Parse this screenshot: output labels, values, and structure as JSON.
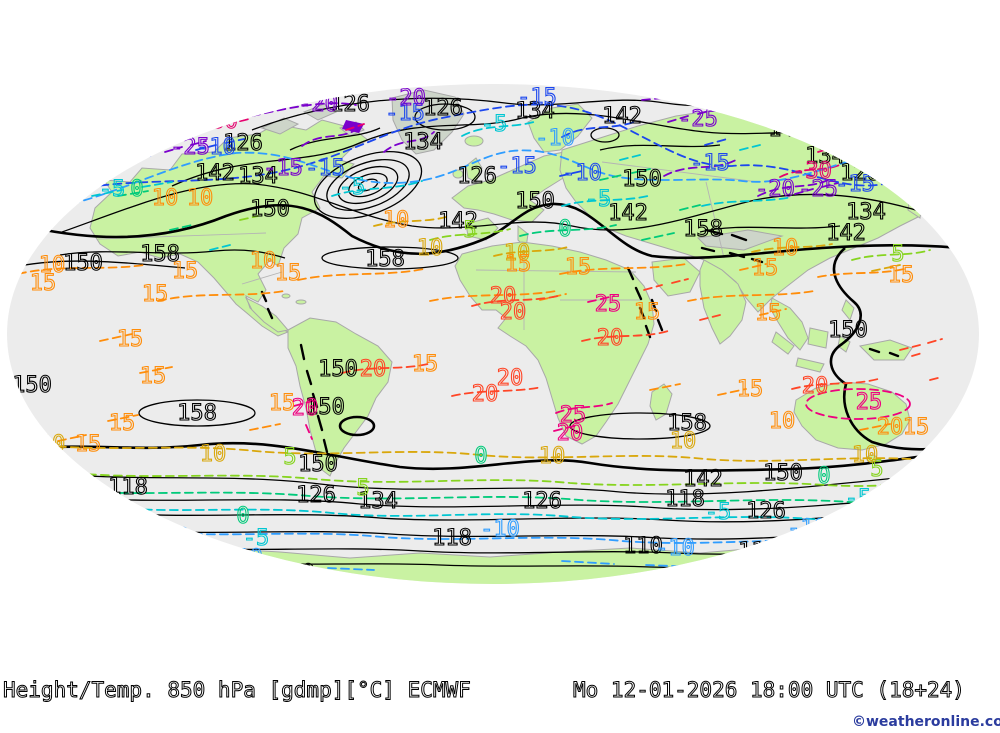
{
  "footer": {
    "left": "Height/Temp. 850 hPa [gdmp][°C] ECMWF",
    "right": "Mo 12-01-2026 18:00 UTC (18+24)",
    "copyright": "©weatheronline.co.uk"
  },
  "map": {
    "description": "Elliptical world map, ECMWF 850 hPa geopotential height (black, gdmp) and temperature (colored dashed, °C)",
    "ocean_color": "#ececec",
    "land_color": "#c9f2a2",
    "coast_color": "#a8a8a8",
    "height_levels": [
      110,
      118,
      126,
      134,
      142,
      150,
      158
    ],
    "temp_levels": [
      -30,
      -25,
      -20,
      -15,
      -10,
      -5,
      0,
      5,
      10,
      15,
      20,
      25
    ],
    "temp_colors": {
      "-30": "#e6006e",
      "-25": "#7a00cc",
      "-20": "#7a00cc",
      "-15": "#1c47ee",
      "-10": "#2f9dff",
      "-5": "#00c6d2",
      "0": "#00ca7a",
      "5": "#86d41f",
      "10": "#d9a70b",
      "15": "#ff8d0a",
      "20": "#ff4526",
      "25": "#ee0080"
    },
    "labels": [
      [
        "126",
        243,
        142,
        "k"
      ],
      [
        "126",
        350,
        103,
        "k"
      ],
      [
        "126",
        443,
        107,
        "k"
      ],
      [
        "126",
        477,
        175,
        "k"
      ],
      [
        "126",
        860,
        172,
        "k"
      ],
      [
        "126",
        316,
        494,
        "k"
      ],
      [
        "126",
        542,
        500,
        "k"
      ],
      [
        "126",
        766,
        510,
        "k"
      ],
      [
        "134",
        258,
        175,
        "k"
      ],
      [
        "134",
        423,
        141,
        "k"
      ],
      [
        "134",
        535,
        110,
        "k"
      ],
      [
        "134",
        825,
        155,
        "k"
      ],
      [
        "134",
        866,
        211,
        "k"
      ],
      [
        "134",
        378,
        500,
        "k"
      ],
      [
        "142",
        215,
        172,
        "k"
      ],
      [
        "142",
        622,
        115,
        "k"
      ],
      [
        "142",
        458,
        220,
        "k"
      ],
      [
        "142",
        628,
        212,
        "k"
      ],
      [
        "142",
        788,
        128,
        "k"
      ],
      [
        "142",
        846,
        232,
        "k"
      ],
      [
        "142",
        703,
        478,
        "k"
      ],
      [
        "150",
        270,
        208,
        "k"
      ],
      [
        "150",
        83,
        262,
        "k"
      ],
      [
        "150",
        32,
        384,
        "k"
      ],
      [
        "150",
        338,
        368,
        "k"
      ],
      [
        "150",
        325,
        406,
        "k"
      ],
      [
        "150",
        535,
        200,
        "k"
      ],
      [
        "150",
        642,
        178,
        "k"
      ],
      [
        "150",
        848,
        329,
        "k"
      ],
      [
        "150",
        318,
        463,
        "k"
      ],
      [
        "150",
        783,
        472,
        "k"
      ],
      [
        "158",
        160,
        253,
        "k"
      ],
      [
        "158",
        385,
        258,
        "k"
      ],
      [
        "158",
        197,
        412,
        "k"
      ],
      [
        "158",
        687,
        422,
        "k"
      ],
      [
        "158",
        703,
        228,
        "k"
      ],
      [
        "118",
        128,
        486,
        "k"
      ],
      [
        "118",
        452,
        537,
        "k"
      ],
      [
        "118",
        685,
        498,
        "k"
      ],
      [
        "110",
        295,
        572,
        "k"
      ],
      [
        "110",
        643,
        545,
        "k"
      ],
      [
        "110",
        758,
        550,
        "k"
      ],
      [
        "110",
        810,
        547,
        "k"
      ],
      [
        "-15",
        405,
        112,
        "bl"
      ],
      [
        "-15",
        537,
        96,
        "bl"
      ],
      [
        "-15",
        517,
        165,
        "bl"
      ],
      [
        "-15",
        325,
        167,
        "bl"
      ],
      [
        "-15",
        710,
        162,
        "bl"
      ],
      [
        "-15",
        855,
        183,
        "bl"
      ],
      [
        "-15",
        948,
        150,
        "bl"
      ],
      [
        "-10",
        216,
        146,
        "bl"
      ],
      [
        "-10",
        582,
        172,
        "bl"
      ],
      [
        "-10",
        875,
        150,
        "lb"
      ],
      [
        "-10",
        555,
        137,
        "lb"
      ],
      [
        "-10",
        500,
        528,
        "lb"
      ],
      [
        "-10",
        243,
        557,
        "lb"
      ],
      [
        "-10",
        675,
        547,
        "lb"
      ],
      [
        "-10",
        807,
        527,
        "lb"
      ],
      [
        "-10",
        170,
        536,
        "lb"
      ],
      [
        "-5",
        494,
        123,
        "cy"
      ],
      [
        "-5",
        598,
        198,
        "cy"
      ],
      [
        "-5",
        112,
        188,
        "cy"
      ],
      [
        "-5",
        352,
        186,
        "cy"
      ],
      [
        "-5",
        718,
        511,
        "cy"
      ],
      [
        "-5",
        858,
        497,
        "cy"
      ],
      [
        "-5",
        256,
        537,
        "cy"
      ],
      [
        "0",
        137,
        188,
        "gn"
      ],
      [
        "0",
        565,
        228,
        "gn"
      ],
      [
        "0",
        243,
        515,
        "gn"
      ],
      [
        "0",
        481,
        455,
        "gn"
      ],
      [
        "0",
        824,
        475,
        "gn"
      ],
      [
        "0",
        913,
        477,
        "gn"
      ],
      [
        "5",
        290,
        456,
        "lm"
      ],
      [
        "5",
        363,
        487,
        "lm"
      ],
      [
        "5",
        877,
        468,
        "lm"
      ],
      [
        "5",
        898,
        253,
        "lm"
      ],
      [
        "5",
        470,
        229,
        "lm"
      ],
      [
        "10",
        517,
        252,
        "yl"
      ],
      [
        "10",
        430,
        247,
        "yl"
      ],
      [
        "10",
        683,
        440,
        "yl"
      ],
      [
        "10",
        865,
        454,
        "yl"
      ],
      [
        "10",
        552,
        455,
        "yl"
      ],
      [
        "10",
        213,
        453,
        "yl"
      ],
      [
        "10",
        52,
        443,
        "yl"
      ],
      [
        "15",
        43,
        282,
        "or"
      ],
      [
        "15",
        185,
        270,
        "or"
      ],
      [
        "15",
        155,
        293,
        "or"
      ],
      [
        "15",
        130,
        338,
        "or"
      ],
      [
        "15",
        153,
        375,
        "or"
      ],
      [
        "15",
        122,
        422,
        "or"
      ],
      [
        "15",
        88,
        443,
        "or"
      ],
      [
        "15",
        288,
        272,
        "or"
      ],
      [
        "15",
        425,
        363,
        "or"
      ],
      [
        "15",
        578,
        266,
        "or"
      ],
      [
        "15",
        647,
        311,
        "or"
      ],
      [
        "15",
        750,
        388,
        "or"
      ],
      [
        "15",
        916,
        426,
        "or"
      ],
      [
        "15",
        765,
        267,
        "or"
      ],
      [
        "15",
        768,
        312,
        "or"
      ],
      [
        "15",
        282,
        402,
        "or"
      ],
      [
        "15",
        901,
        274,
        "or"
      ],
      [
        "15",
        518,
        263,
        "or"
      ],
      [
        "10",
        52,
        264,
        "or"
      ],
      [
        "10",
        165,
        197,
        "or"
      ],
      [
        "10",
        200,
        197,
        "or"
      ],
      [
        "10",
        263,
        260,
        "or"
      ],
      [
        "10",
        782,
        420,
        "or"
      ],
      [
        "10",
        396,
        219,
        "or"
      ],
      [
        "10",
        785,
        247,
        "or"
      ],
      [
        "20",
        890,
        426,
        "or"
      ],
      [
        "20",
        373,
        368,
        "rd"
      ],
      [
        "20",
        510,
        377,
        "rd"
      ],
      [
        "20",
        485,
        393,
        "rd"
      ],
      [
        "20",
        503,
        295,
        "rd"
      ],
      [
        "20",
        513,
        311,
        "rd"
      ],
      [
        "20",
        610,
        337,
        "rd"
      ],
      [
        "20",
        815,
        385,
        "rd"
      ],
      [
        "25",
        608,
        303,
        "pk"
      ],
      [
        "25",
        869,
        401,
        "pk"
      ],
      [
        "25",
        573,
        414,
        "pk"
      ],
      [
        "20",
        305,
        407,
        "pk"
      ],
      [
        "20",
        570,
        432,
        "pk"
      ],
      [
        "-30",
        218,
        120,
        "mg"
      ],
      [
        "-30",
        812,
        170,
        "mg"
      ],
      [
        "-20",
        318,
        103,
        "pu"
      ],
      [
        "-20",
        406,
        97,
        "pu"
      ],
      [
        "-20",
        745,
        97,
        "pu"
      ],
      [
        "-20",
        907,
        97,
        "pu"
      ],
      [
        "-20",
        775,
        188,
        "pu"
      ],
      [
        "-25",
        698,
        118,
        "pu"
      ],
      [
        "-25",
        818,
        188,
        "pu"
      ],
      [
        "-25",
        190,
        146,
        "pu"
      ],
      [
        "-15",
        283,
        167,
        "pu"
      ]
    ]
  }
}
